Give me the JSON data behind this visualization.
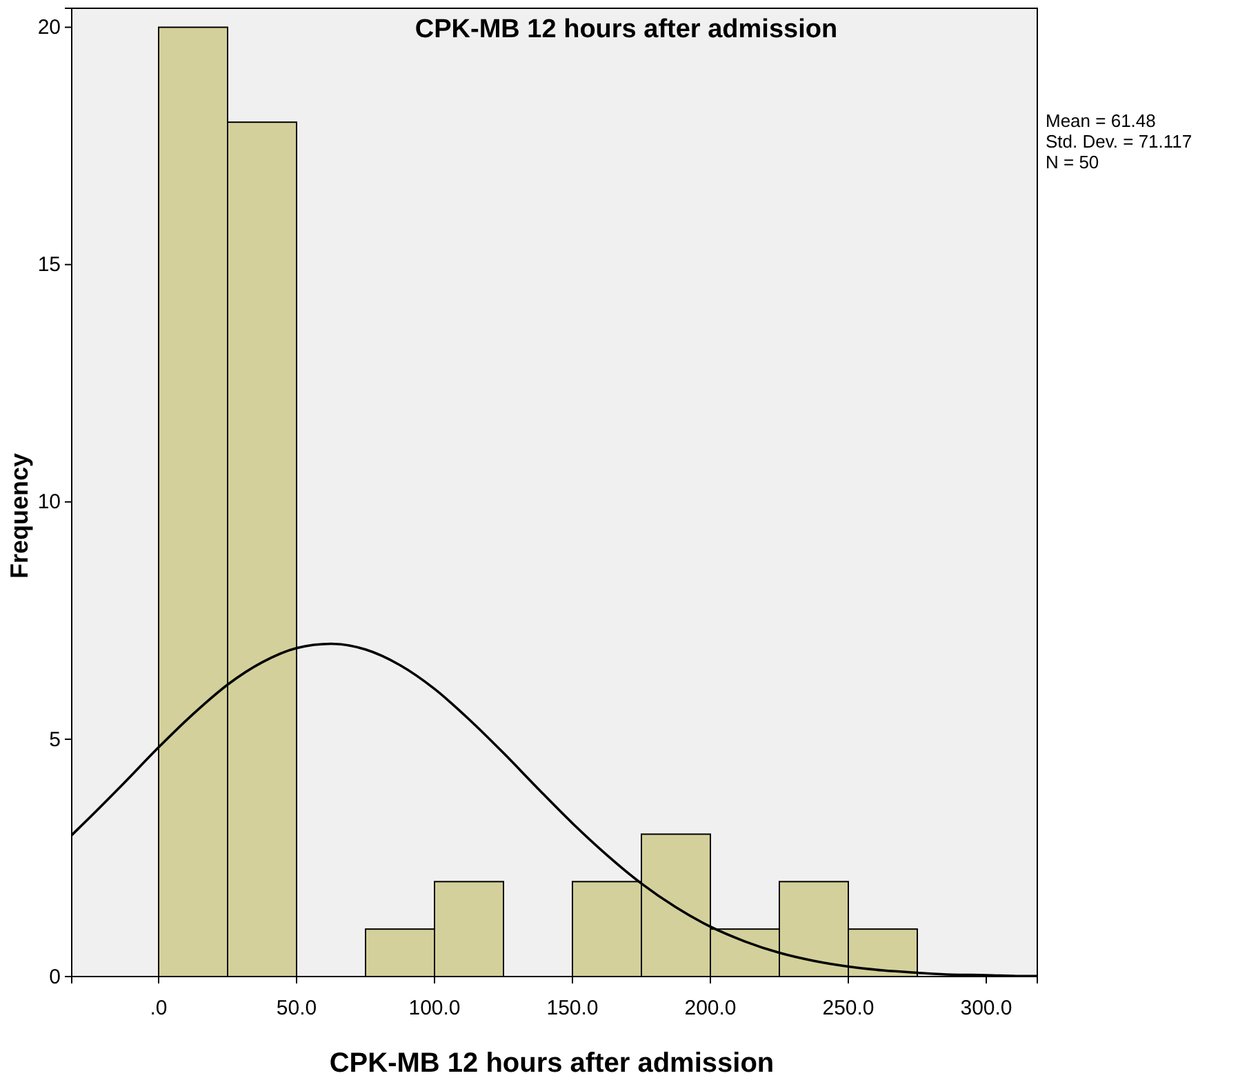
{
  "chart_data": {
    "type": "histogram",
    "title": "CPK-MB 12 hours after admission",
    "xlabel": "CPK-MB 12 hours after admission",
    "ylabel": "Frequency",
    "bins": [
      0,
      25,
      50,
      75,
      100,
      125,
      150,
      175,
      200,
      225,
      250,
      275
    ],
    "series": [
      {
        "color": "#d4d09b",
        "values": [
          20,
          18,
          0,
          1,
          2,
          0,
          2,
          3,
          1,
          2,
          1
        ]
      },
      {
        "type": "line",
        "color": "#000000",
        "x": [
          -31.5,
          -25,
          -12.5,
          0,
          12.5,
          25,
          37.5,
          50,
          62.5,
          75,
          87.5,
          100,
          112.5,
          125,
          137.5,
          150,
          162.5,
          175,
          187.5,
          200,
          212.5,
          225,
          237.5,
          250,
          262.5,
          275,
          287.5,
          300,
          312.5,
          318.5
        ],
        "values": [
          2.98,
          3.35,
          4.08,
          4.83,
          5.53,
          6.15,
          6.62,
          6.92,
          7.01,
          6.89,
          6.56,
          6.06,
          5.42,
          4.71,
          3.96,
          3.23,
          2.56,
          1.96,
          1.46,
          1.05,
          0.74,
          0.5,
          0.33,
          0.21,
          0.13,
          0.08,
          0.04,
          0.03,
          0.01,
          0.01
        ]
      }
    ],
    "xlim": [
      -31.5,
      318.5
    ],
    "xticks": [
      {
        "value": 0,
        "label": ".0"
      },
      {
        "value": 50,
        "label": "50.0"
      },
      {
        "value": 100,
        "label": "100.0"
      },
      {
        "value": 150,
        "label": "150.0"
      },
      {
        "value": 200,
        "label": "200.0"
      },
      {
        "value": 250,
        "label": "250.0"
      },
      {
        "value": 300,
        "label": "300.0"
      }
    ],
    "ylim": [
      0,
      20.4
    ],
    "yticks": [
      0,
      5,
      10,
      15,
      20
    ],
    "annotations": [
      "Mean = 61.48",
      "Std. Dev. = 71.117",
      "N = 50"
    ]
  }
}
